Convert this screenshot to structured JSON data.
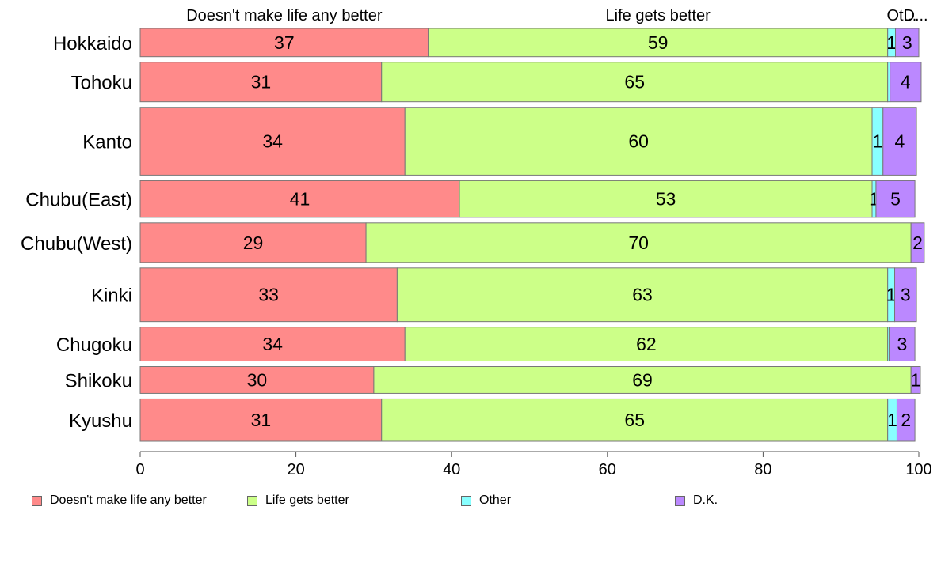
{
  "chart_data": {
    "type": "bar",
    "orientation": "horizontal",
    "stacked": true,
    "categories": [
      "Hokkaido",
      "Tohoku",
      "Kanto",
      "Chubu(East)",
      "Chubu(West)",
      "Kinki",
      "Chugoku",
      "Shikoku",
      "Kyushu"
    ],
    "series": [
      {
        "name": "Doesn't make life any better",
        "color": "#ff8a8a",
        "values": [
          37,
          31,
          34,
          41,
          29,
          33,
          34,
          30,
          31
        ]
      },
      {
        "name": "Life gets better",
        "color": "#ccff88",
        "values": [
          59,
          65,
          60,
          53,
          70,
          63,
          62,
          69,
          65
        ]
      },
      {
        "name": "Other",
        "color": "#88ffff",
        "values": [
          1,
          0.3,
          1.4,
          0.5,
          0,
          0.9,
          0.2,
          0,
          1.2
        ]
      },
      {
        "name": "D.K.",
        "color": "#bb88ff",
        "values": [
          3,
          4,
          4.3,
          5,
          1.7,
          2.8,
          3.3,
          1.2,
          2.3
        ]
      }
    ],
    "data_labels": [
      [
        "37",
        "59",
        "1",
        "3"
      ],
      [
        "31",
        "65",
        "",
        "4"
      ],
      [
        "34",
        "60",
        "1",
        "4"
      ],
      [
        "41",
        "53",
        "1",
        "5"
      ],
      [
        "29",
        "70",
        "",
        "2"
      ],
      [
        "33",
        "63",
        "1",
        "3"
      ],
      [
        "34",
        "62",
        "",
        "3"
      ],
      [
        "30",
        "69",
        "",
        "1"
      ],
      [
        "31",
        "65",
        "1",
        "2"
      ]
    ],
    "bar_weights": [
      1.0,
      1.4,
      2.4,
      1.3,
      1.4,
      1.9,
      1.2,
      0.95,
      1.5
    ],
    "top_labels": [
      "Doesn't make life any better",
      "Life gets better",
      "Ot...",
      "D..."
    ],
    "xlim": [
      0,
      100
    ],
    "xticks": [
      0,
      20,
      40,
      60,
      80,
      100
    ],
    "title": "",
    "xlabel": "",
    "ylabel": "",
    "grid": false,
    "legend_position": "bottom"
  }
}
